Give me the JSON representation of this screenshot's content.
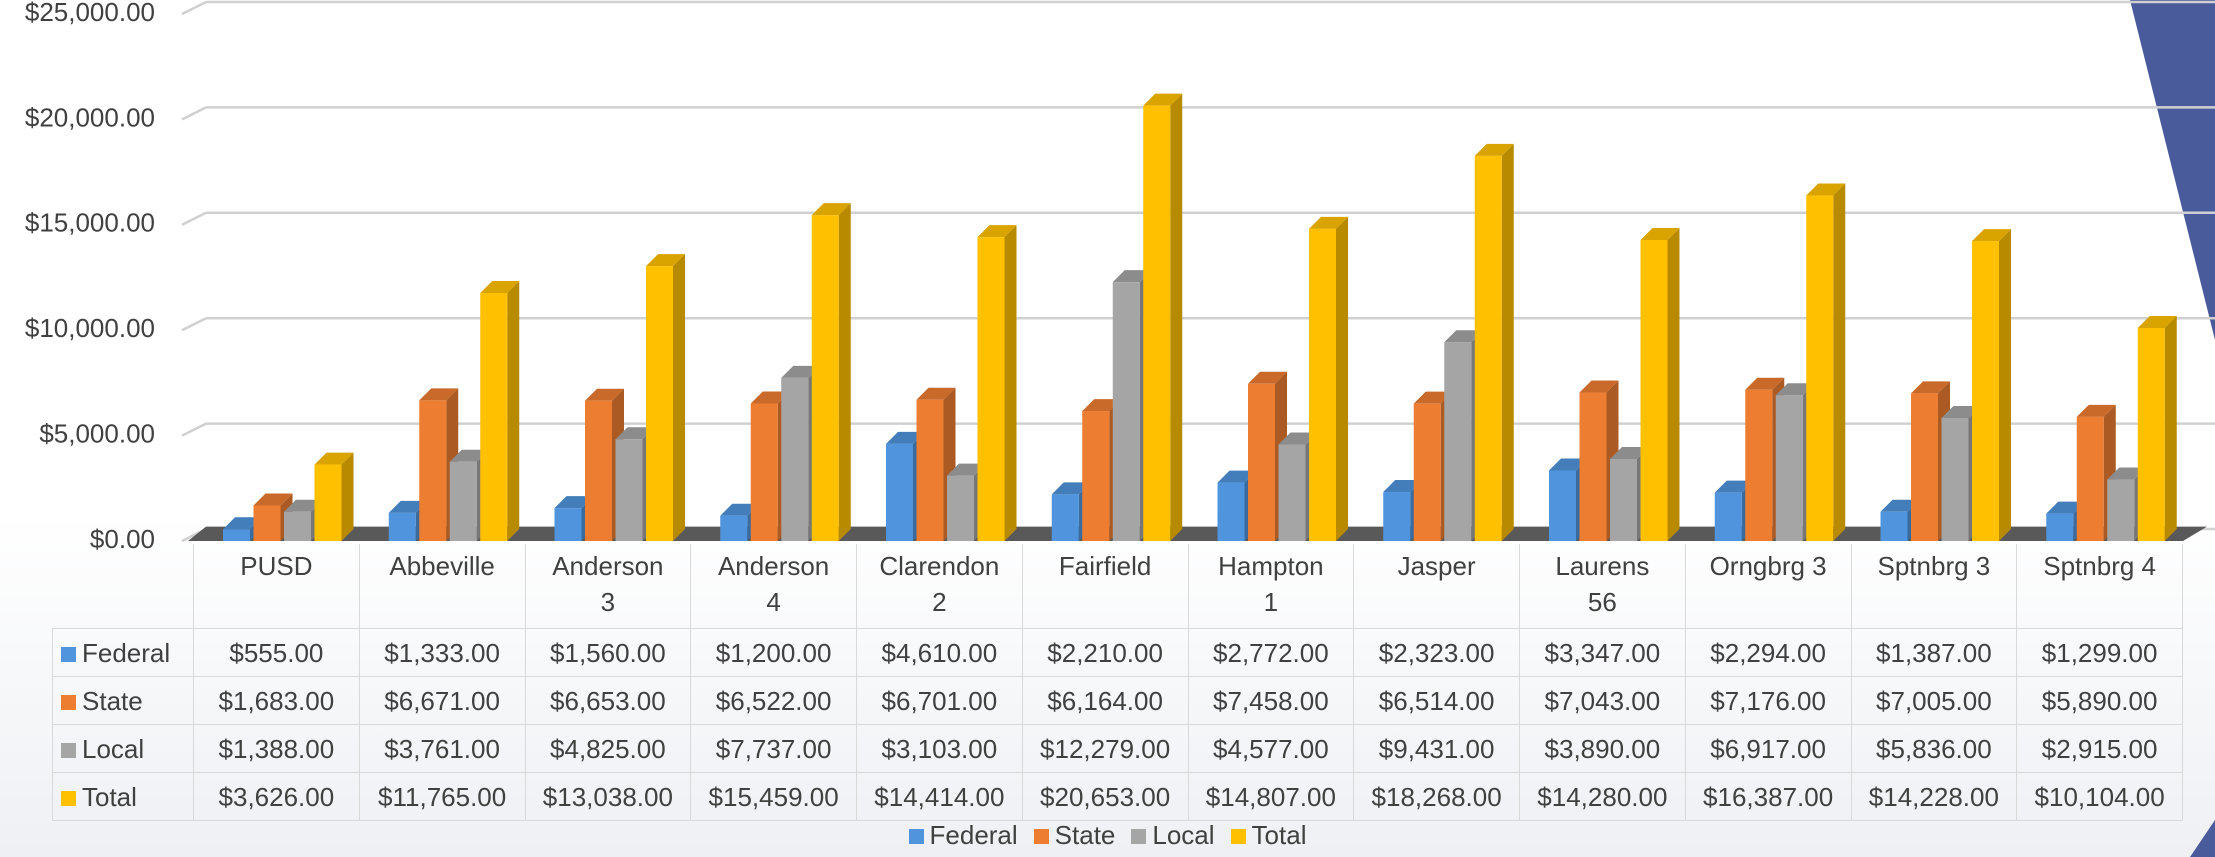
{
  "chart_data": {
    "type": "bar3d",
    "categories": [
      "PUSD",
      "Abbeville",
      "Anderson 3",
      "Anderson 4",
      "Clarendon 2",
      "Fairfield",
      "Hampton 1",
      "Jasper",
      "Laurens 56",
      "Orngbrg 3",
      "Sptnbrg 3",
      "Sptnbrg 4"
    ],
    "series": [
      {
        "name": "Federal",
        "color": "#4f94dc",
        "values": [
          555,
          1333,
          1560,
          1200,
          4610,
          2210,
          2772,
          2323,
          3347,
          2294,
          1387,
          1299
        ],
        "value_labels": [
          "$555.00",
          "$1,333.00",
          "$1,560.00",
          "$1,200.00",
          "$4,610.00",
          "$2,210.00",
          "$2,772.00",
          "$2,323.00",
          "$3,347.00",
          "$2,294.00",
          "$1,387.00",
          "$1,299.00"
        ]
      },
      {
        "name": "State",
        "color": "#ed7d31",
        "values": [
          1683,
          6671,
          6653,
          6522,
          6701,
          6164,
          7458,
          6514,
          7043,
          7176,
          7005,
          5890
        ],
        "value_labels": [
          "$1,683.00",
          "$6,671.00",
          "$6,653.00",
          "$6,522.00",
          "$6,701.00",
          "$6,164.00",
          "$7,458.00",
          "$6,514.00",
          "$7,043.00",
          "$7,176.00",
          "$7,005.00",
          "$5,890.00"
        ]
      },
      {
        "name": "Local",
        "color": "#a5a5a5",
        "values": [
          1388,
          3761,
          4825,
          7737,
          3103,
          12279,
          4577,
          9431,
          3890,
          6917,
          5836,
          2915
        ],
        "value_labels": [
          "$1,388.00",
          "$3,761.00",
          "$4,825.00",
          "$7,737.00",
          "$3,103.00",
          "$12,279.00",
          "$4,577.00",
          "$9,431.00",
          "$3,890.00",
          "$6,917.00",
          "$5,836.00",
          "$2,915.00"
        ]
      },
      {
        "name": "Total",
        "color": "#ffc000",
        "values": [
          3626,
          11765,
          13038,
          15459,
          14414,
          20653,
          14807,
          18268,
          14280,
          16387,
          14228,
          10104
        ],
        "value_labels": [
          "$3,626.00",
          "$11,765.00",
          "$13,038.00",
          "$15,459.00",
          "$14,414.00",
          "$20,653.00",
          "$14,807.00",
          "$18,268.00",
          "$14,280.00",
          "$16,387.00",
          "$14,228.00",
          "$10,104.00"
        ]
      }
    ],
    "ylim": [
      0,
      25000
    ],
    "yticks": [
      {
        "value": 0,
        "label": "$0.00"
      },
      {
        "value": 5000,
        "label": "$5,000.00"
      },
      {
        "value": 10000,
        "label": "$10,000.00"
      },
      {
        "value": 15000,
        "label": "$15,000.00"
      },
      {
        "value": 20000,
        "label": "$20,000.00"
      },
      {
        "value": 25000,
        "label": "$25,000.00"
      }
    ],
    "grid": true,
    "legend": "bottom"
  }
}
